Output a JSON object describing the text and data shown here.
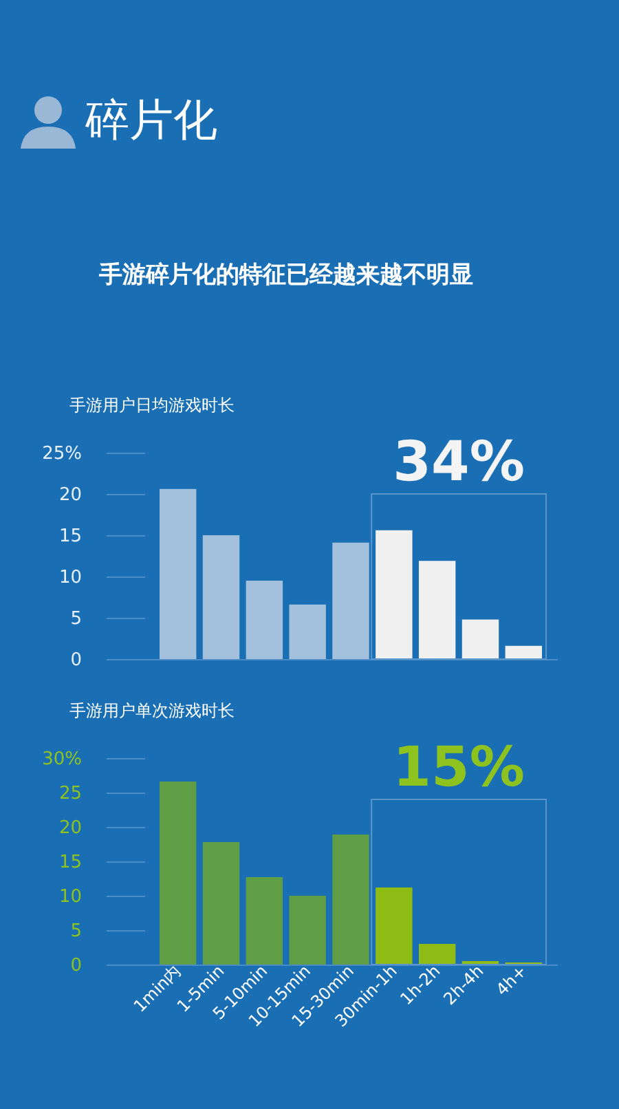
{
  "chart_data": [
    {
      "type": "bar",
      "title": "碎片化",
      "subtitle": "手游碎片化的特征已经越来越不明显",
      "ylabel": "手游用户日均游戏时长",
      "categories": [
        null,
        null,
        null,
        null,
        null,
        null,
        null,
        null,
        null
      ],
      "values": [
        20.6,
        15.0,
        9.5,
        6.6,
        14.1,
        15.6,
        11.9,
        4.8,
        1.6
      ],
      "colors": [
        "#a3c1dc",
        "#a3c1dc",
        "#a3c1dc",
        "#a3c1dc",
        "#a3c1dc",
        "#f0f0f0",
        "#f0f0f0",
        "#f0f0f0",
        "#f0f0f0"
      ],
      "ylim": [
        0,
        25
      ],
      "yticks": [
        0,
        5,
        10,
        15,
        20,
        {
          "value": 25,
          "label": "25%"
        }
      ],
      "grid": false,
      "tick_labels": "y",
      "annotations": [
        "34%"
      ]
    },
    {
      "type": "bar",
      "ylabel": "手游用户单次游戏时长",
      "categories": [
        "1min内",
        "1-5min",
        "5-10min",
        "10-15min",
        "15-30min",
        "30min-1h",
        "1h-2h",
        "2h-4h",
        "4h+"
      ],
      "values": [
        26.6,
        17.8,
        12.7,
        10.0,
        18.9,
        11.2,
        3.0,
        0.5,
        0.3
      ],
      "colors": [
        "#5f9e45",
        "#5f9e45",
        "#5f9e45",
        "#5f9e45",
        "#5f9e45",
        "#8fbc14",
        "#8fbc14",
        "#8fbc14",
        "#8fbc14"
      ],
      "ylim": [
        0,
        30
      ],
      "yticks": [
        0,
        5,
        10,
        15,
        20,
        25,
        {
          "value": 30,
          "label": "30%"
        }
      ],
      "grid": false,
      "annotations": [
        "15%"
      ]
    }
  ]
}
